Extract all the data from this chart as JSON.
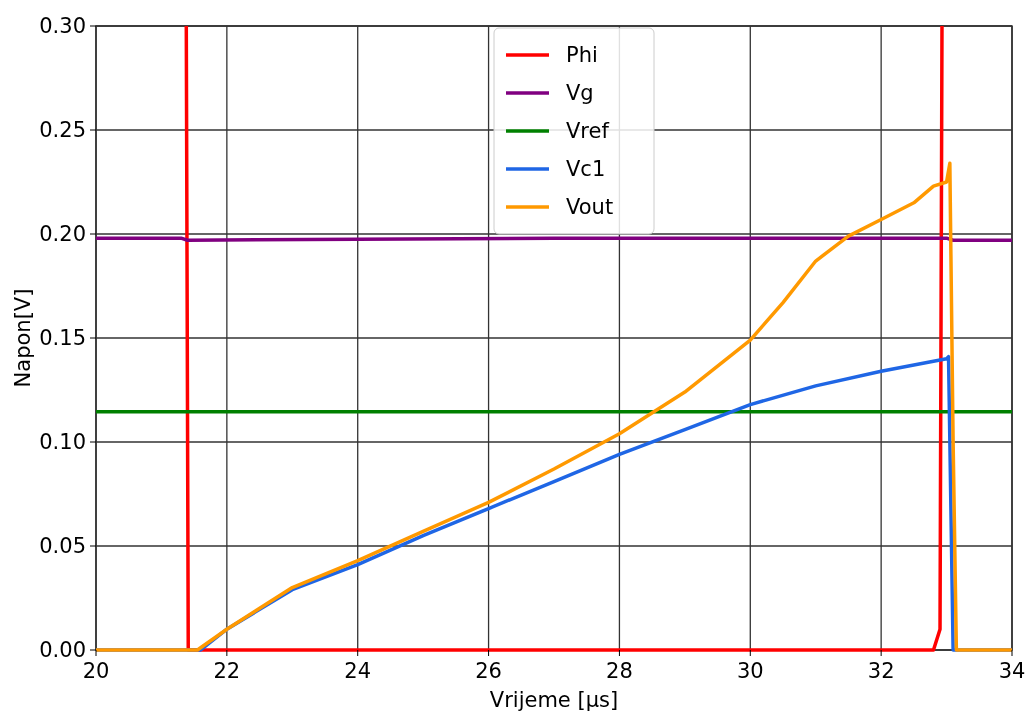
{
  "chart_data": {
    "type": "line",
    "xlabel": "Vrijeme [µs]",
    "ylabel": "Napon[V]",
    "xlim": [
      20,
      34
    ],
    "xticks": [
      20,
      22,
      24,
      26,
      28,
      30,
      32,
      34
    ],
    "ylim": [
      0,
      0.3
    ],
    "yticks": [
      {
        "value": 0,
        "label": "0.00"
      },
      {
        "value": 0.05,
        "label": "0.05"
      },
      {
        "value": 0.1,
        "label": "0.10"
      },
      {
        "value": 0.15,
        "label": "0.15"
      },
      {
        "value": 0.2,
        "label": "0.20"
      },
      {
        "value": 0.25,
        "label": "0.25"
      },
      {
        "value": 0.3,
        "label": "0.30"
      }
    ],
    "grid": true,
    "legend": "top",
    "line_style": "solid",
    "series": [
      {
        "name": "Phi",
        "color": "#ff0000",
        "x": [
          21.38,
          21.41,
          22,
          32.8,
          32.9,
          32.93
        ],
        "values": [
          0.3,
          0,
          0,
          0,
          0.01,
          0.3
        ]
      },
      {
        "name": "Vg",
        "color": "#800080",
        "x": [
          20,
          21.3,
          21.4,
          27,
          33.0,
          33.1,
          34
        ],
        "values": [
          0.198,
          0.198,
          0.197,
          0.198,
          0.198,
          0.197,
          0.197
        ]
      },
      {
        "name": "Vref",
        "color": "#008000",
        "x": [
          20,
          34
        ],
        "values": [
          0.1145,
          0.1145
        ]
      },
      {
        "name": "Vc1",
        "color": "#1f66e5",
        "x": [
          20,
          21.6,
          22,
          23,
          24,
          25,
          26,
          27,
          28,
          29,
          30,
          31,
          32,
          33,
          33.03,
          33.1,
          34
        ],
        "values": [
          0,
          0,
          0.01,
          0.029,
          0.041,
          0.055,
          0.068,
          0.081,
          0.094,
          0.106,
          0.118,
          0.127,
          0.134,
          0.14,
          0.141,
          0,
          0
        ]
      },
      {
        "name": "Vout",
        "color": "#ff9900",
        "x": [
          20,
          21.55,
          22,
          23,
          24,
          25,
          26,
          27,
          28,
          29,
          30,
          30.5,
          31,
          31.5,
          32,
          32.5,
          32.8,
          33,
          33.05,
          33.1,
          33.15,
          34
        ],
        "values": [
          0,
          0,
          0.01,
          0.03,
          0.043,
          0.057,
          0.071,
          0.087,
          0.104,
          0.124,
          0.149,
          0.167,
          0.187,
          0.199,
          0.207,
          0.215,
          0.223,
          0.225,
          0.234,
          0.1,
          0,
          0
        ]
      }
    ]
  }
}
